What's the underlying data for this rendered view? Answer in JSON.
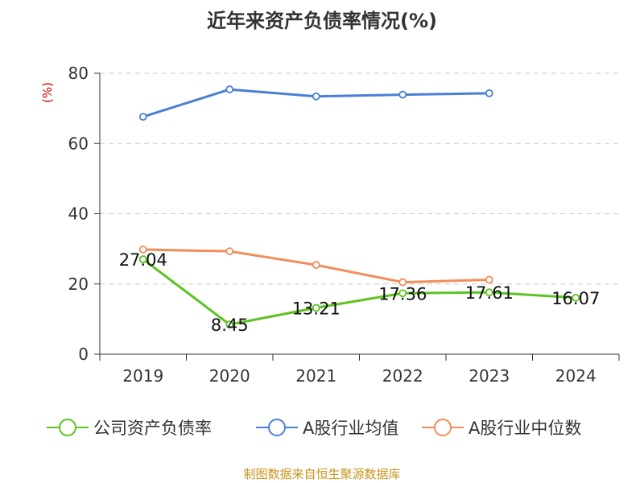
{
  "chart_data": {
    "type": "line",
    "title": "近年来资产负债率情况(%)",
    "ylabel": "(%)",
    "xlabel": "",
    "categories": [
      "2019",
      "2020",
      "2021",
      "2022",
      "2023",
      "2024"
    ],
    "ylim": [
      0,
      80
    ],
    "yticks": [
      "0",
      "20",
      "40",
      "60",
      "80"
    ],
    "grid": "horizontal dashed",
    "legend_position": "bottom",
    "series": [
      {
        "name": "公司资产负债率",
        "color": "#5cc421",
        "values": [
          27.04,
          8.45,
          13.21,
          17.36,
          17.61,
          16.07
        ],
        "labels": [
          "27.04",
          "8.45",
          "13.21",
          "17.36",
          "17.61",
          "16.07"
        ]
      },
      {
        "name": "A股行业均值",
        "color": "#4a7fd6",
        "values": [
          67.6,
          75.4,
          73.4,
          73.9,
          74.3,
          null
        ]
      },
      {
        "name": "A股行业中位数",
        "color": "#f28c59",
        "values": [
          29.8,
          29.3,
          25.4,
          20.5,
          21.2,
          null
        ]
      }
    ]
  },
  "source": "制图数据来自恒生聚源数据库"
}
